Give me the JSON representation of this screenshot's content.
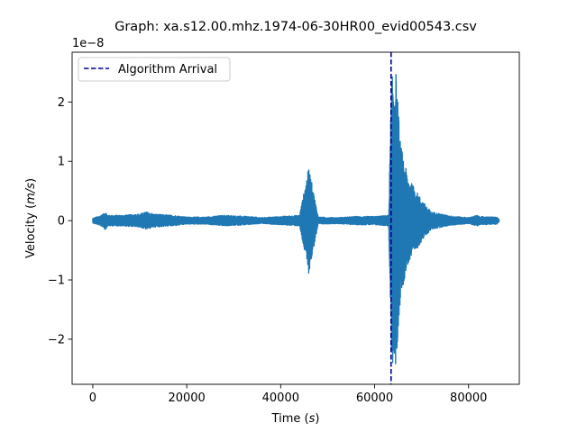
{
  "chart_data": {
    "type": "line",
    "title": "Graph: xa.s12.00.mhz.1974-06-30HR00_evid00543.csv",
    "xlabel": {
      "text": "Time (",
      "unit": "s",
      "close": ")"
    },
    "ylabel": {
      "text": "Velocity (",
      "unit": "m/s",
      "close": ")"
    },
    "y_offset_label": "1e−8",
    "xlim": [
      -4400,
      90800
    ],
    "ylim": [
      -2.76,
      2.84
    ],
    "x_ticks": [
      0,
      20000,
      40000,
      60000,
      80000
    ],
    "x_tick_labels": [
      "0",
      "20000",
      "40000",
      "60000",
      "80000"
    ],
    "y_ticks": [
      -2,
      -1,
      0,
      1,
      2
    ],
    "y_tick_labels": [
      "−2",
      "−1",
      "0",
      "1",
      "2"
    ],
    "grid": false,
    "legend_placement": "upper-left",
    "series": [
      {
        "name": "",
        "color": "#1f77b4",
        "x_range": [
          0,
          86500
        ],
        "envelope": [
          {
            "x": 0,
            "amp": 0.04
          },
          {
            "x": 1500,
            "amp": 0.08
          },
          {
            "x": 2400,
            "amp": 0.12
          },
          {
            "x": 2600,
            "amp": 0.16
          },
          {
            "x": 3200,
            "amp": 0.09
          },
          {
            "x": 6000,
            "amp": 0.09
          },
          {
            "x": 10000,
            "amp": 0.11
          },
          {
            "x": 11300,
            "amp": 0.15
          },
          {
            "x": 13000,
            "amp": 0.11
          },
          {
            "x": 17000,
            "amp": 0.09
          },
          {
            "x": 20000,
            "amp": 0.06
          },
          {
            "x": 24000,
            "amp": 0.06
          },
          {
            "x": 28000,
            "amp": 0.09
          },
          {
            "x": 33000,
            "amp": 0.07
          },
          {
            "x": 36000,
            "amp": 0.05
          },
          {
            "x": 40000,
            "amp": 0.07
          },
          {
            "x": 44000,
            "amp": 0.09
          },
          {
            "x": 46000,
            "amp": 0.9
          },
          {
            "x": 48000,
            "amp": 0.06
          },
          {
            "x": 52000,
            "amp": 0.05
          },
          {
            "x": 56000,
            "amp": 0.07
          },
          {
            "x": 60000,
            "amp": 0.07
          },
          {
            "x": 63000,
            "amp": 0.09
          },
          {
            "x": 63600,
            "amp": 2.4
          },
          {
            "x": 64500,
            "amp": 2.55
          },
          {
            "x": 65500,
            "amp": 1.3
          },
          {
            "x": 67000,
            "amp": 0.75
          },
          {
            "x": 70000,
            "amp": 0.35
          },
          {
            "x": 72000,
            "amp": 0.15
          },
          {
            "x": 76000,
            "amp": 0.08
          },
          {
            "x": 80000,
            "amp": 0.05
          },
          {
            "x": 81800,
            "amp": 0.09
          },
          {
            "x": 82300,
            "amp": 0.07
          },
          {
            "x": 86000,
            "amp": 0.06
          },
          {
            "x": 86500,
            "amp": 0.02
          }
        ]
      }
    ],
    "arrival": {
      "name": "Algorithm Arrival",
      "x": 63500,
      "color": "#00008b",
      "style": "dashed"
    }
  }
}
